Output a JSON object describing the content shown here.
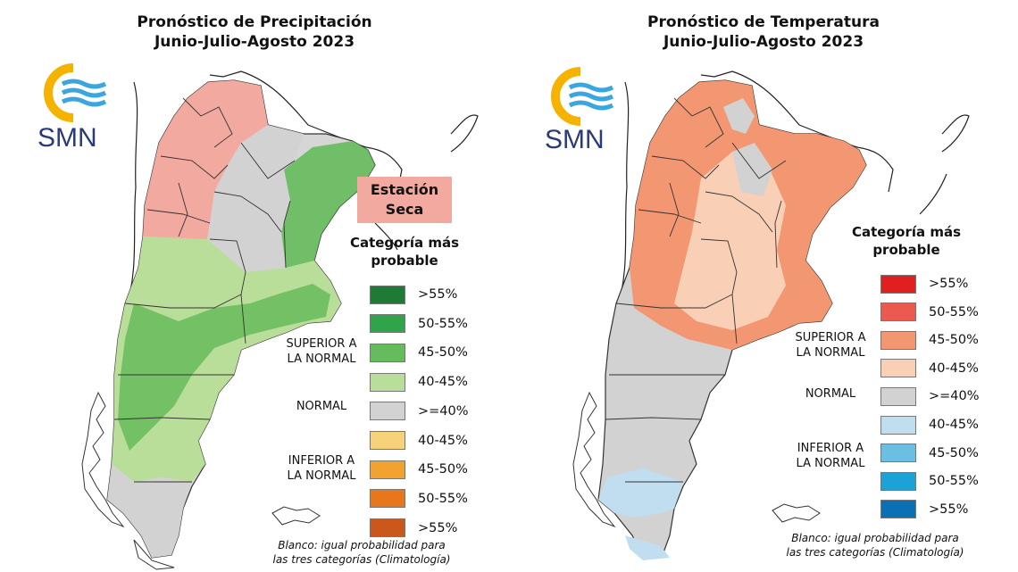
{
  "precip": {
    "title_line1": "Pronóstico de Precipitación",
    "title_line2": "Junio-Julio-Agosto 2023",
    "logo_text": "SMN",
    "dry_season_line1": "Estación",
    "dry_season_line2": "Seca",
    "legend_title_line1": "Categoría más",
    "legend_title_line2": "probable",
    "legend": [
      {
        "label": ">55%",
        "color": "#1f7a33"
      },
      {
        "label": "50-55%",
        "color": "#2fa44a"
      },
      {
        "label": "45-50%",
        "color": "#66bb5c"
      },
      {
        "label": "40-45%",
        "color": "#b9de99"
      },
      {
        "label": ">=40%",
        "color": "#d2d2d2"
      },
      {
        "label": "40-45%",
        "color": "#f8d27a"
      },
      {
        "label": "45-50%",
        "color": "#f2a22e"
      },
      {
        "label": "50-55%",
        "color": "#e8761b"
      },
      {
        "label": ">55%",
        "color": "#c9581a"
      }
    ],
    "cat_superior_line1": "SUPERIOR A",
    "cat_superior_line2": "LA NORMAL",
    "cat_normal": "NORMAL",
    "cat_inferior_line1": "INFERIOR A",
    "cat_inferior_line2": "LA NORMAL",
    "footnote_line1": "Blanco: igual probabilidad para",
    "footnote_line2": "las tres categorías (Climatología)"
  },
  "temp": {
    "title_line1": "Pronóstico de Temperatura",
    "title_line2": "Junio-Julio-Agosto 2023",
    "logo_text": "SMN",
    "legend_title_line1": "Categoría más",
    "legend_title_line2": "probable",
    "legend": [
      {
        "label": ">55%",
        "color": "#e02020"
      },
      {
        "label": "50-55%",
        "color": "#ec5a4f"
      },
      {
        "label": "45-50%",
        "color": "#f29772"
      },
      {
        "label": "40-45%",
        "color": "#f9cfb5"
      },
      {
        "label": ">=40%",
        "color": "#d2d2d2"
      },
      {
        "label": "40-45%",
        "color": "#c0def0"
      },
      {
        "label": "45-50%",
        "color": "#6bbfe2"
      },
      {
        "label": "50-55%",
        "color": "#1da2d8"
      },
      {
        "label": ">55%",
        "color": "#0b6fb4"
      }
    ],
    "cat_superior_line1": "SUPERIOR A",
    "cat_superior_line2": "LA NORMAL",
    "cat_normal": "NORMAL",
    "cat_inferior_line1": "INFERIOR A",
    "cat_inferior_line2": "LA NORMAL",
    "footnote_line1": "Blanco: igual probabilidad para",
    "footnote_line2": "las tres categorías (Climatología)"
  },
  "colors": {
    "logo_yellow": "#f5b300",
    "logo_blue": "#3aa6dd",
    "logo_text": "#2a3a7a"
  }
}
